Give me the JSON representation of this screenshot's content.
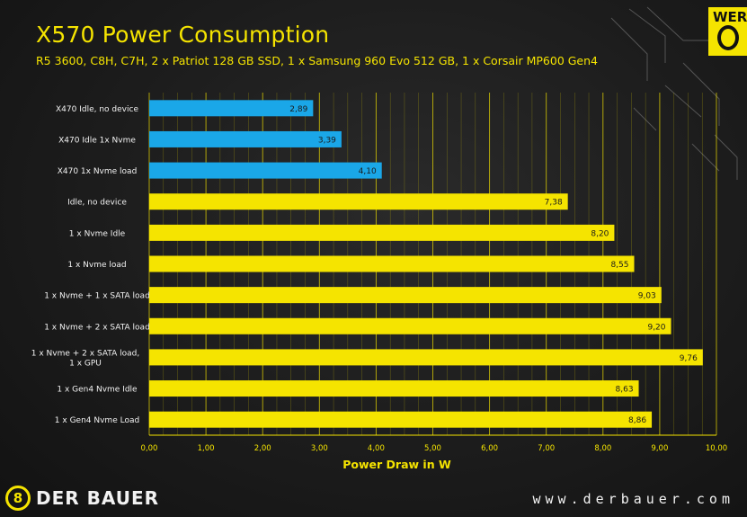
{
  "header": {
    "title": "X570 Power Consumption",
    "subtitle": "R5 3600, C8H, C7H, 2 x Patriot 128 GB SSD, 1 x Samsung 960 Evo 512 GB, 1 x Corsair MP600 Gen4"
  },
  "branding": {
    "corner_text": "WER",
    "logo_text": "DER BAUER",
    "logo_mark": "8",
    "website": "www.derbauer.com"
  },
  "colors": {
    "yellow": "#f5e400",
    "blue": "#1aa7e8",
    "background": "#1c1c1c"
  },
  "chart_data": {
    "type": "bar",
    "orientation": "horizontal",
    "title": "X570 Power Consumption",
    "xlabel": "Power Draw in W",
    "ylabel": "",
    "xlim": [
      0,
      10
    ],
    "x_ticks": [
      "0,00",
      "1,00",
      "2,00",
      "3,00",
      "4,00",
      "5,00",
      "6,00",
      "7,00",
      "8,00",
      "9,00",
      "10,00"
    ],
    "grid": true,
    "categories": [
      "X470 Idle, no device",
      "X470 Idle 1x Nvme",
      "X470 1x Nvme load",
      "Idle, no device",
      "1 x Nvme Idle",
      "1 x Nvme load",
      "1 x Nvme + 1 x SATA load",
      "1 x Nvme + 2 x SATA load",
      "1 x Nvme + 2 x SATA load, 1 x GPU",
      "1 x Gen4 Nvme Idle",
      "1 x Gen4 Nvme Load"
    ],
    "values": [
      2.89,
      3.39,
      4.1,
      7.38,
      8.2,
      8.55,
      9.03,
      9.2,
      9.76,
      8.63,
      8.86
    ],
    "value_labels": [
      "2,89",
      "3,39",
      "4,10",
      "7,38",
      "8,20",
      "8,55",
      "9,03",
      "9,20",
      "9,76",
      "8,63",
      "8,86"
    ],
    "bar_colors": [
      "#1aa7e8",
      "#1aa7e8",
      "#1aa7e8",
      "#f5e400",
      "#f5e400",
      "#f5e400",
      "#f5e400",
      "#f5e400",
      "#f5e400",
      "#f5e400",
      "#f5e400"
    ]
  }
}
